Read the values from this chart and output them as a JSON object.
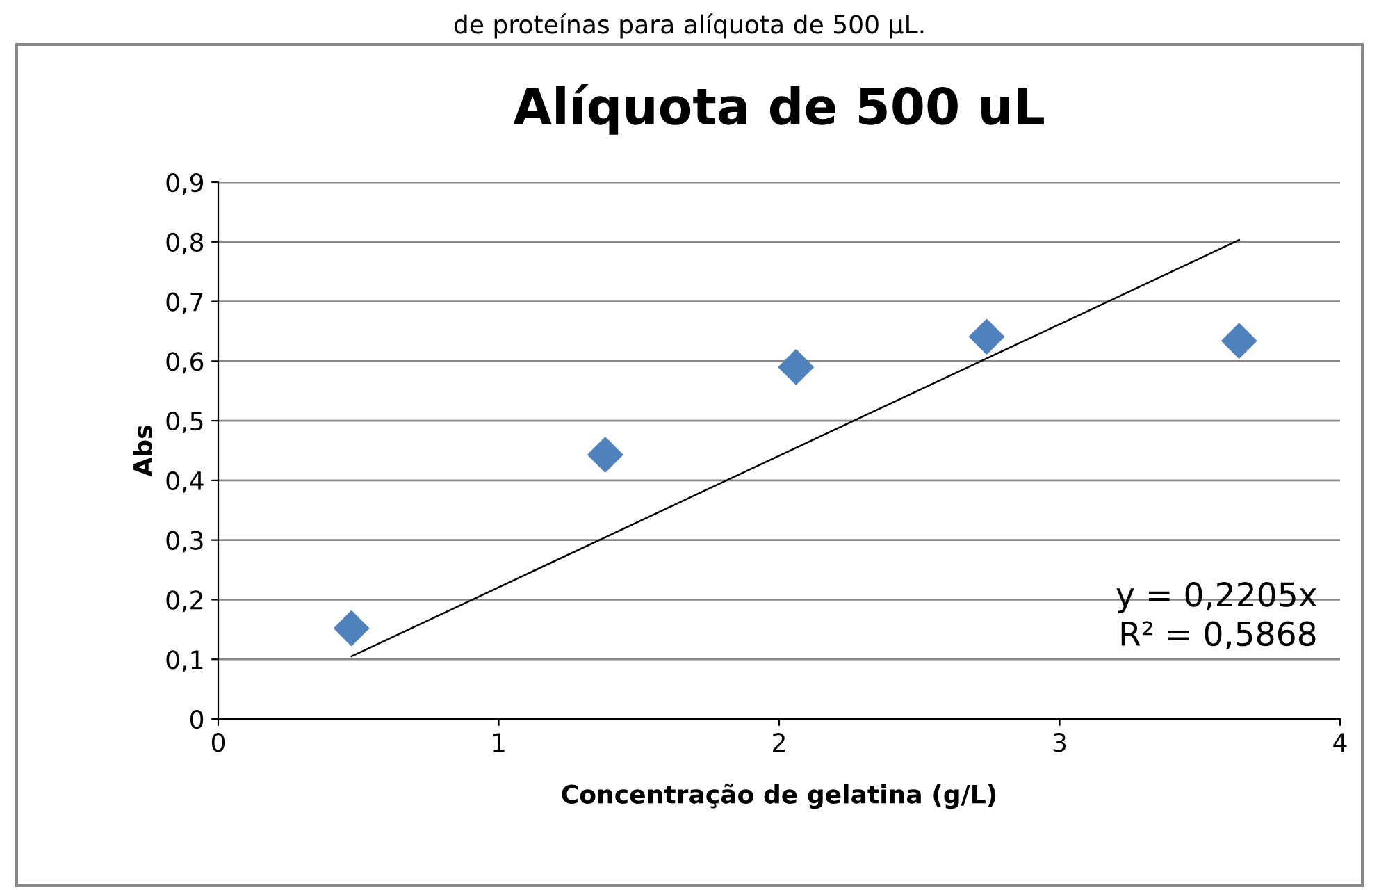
{
  "chart_data": {
    "type": "scatter",
    "title": "Alíquota de 500 uL",
    "xlabel": "Concentração de gelatina (g/L)",
    "ylabel": "Abs",
    "series": [
      {
        "color": "#4f81bd",
        "marker": "diamond",
        "x": [
          0.475,
          1.38,
          2.06,
          2.74,
          3.64
        ],
        "values": [
          0.152,
          0.443,
          0.59,
          0.641,
          0.634
        ]
      },
      {
        "type": "line",
        "color": "#000000",
        "marker": "none",
        "x": [
          0.475,
          3.64
        ],
        "values": [
          0.105,
          0.803
        ]
      }
    ],
    "annotations": [
      "de proteínas para alíquota de 500 µL.",
      "y = 0,2205x\nR² = 0,5868"
    ],
    "xlim": [
      0,
      4
    ],
    "ylim": [
      0,
      0.9
    ],
    "xticks": [
      0,
      1,
      2,
      3,
      4
    ],
    "yticks": [
      0,
      {
        "value": 0.1,
        "label": "0,1"
      },
      {
        "value": 0.2,
        "label": "0,2"
      },
      {
        "value": 0.3,
        "label": "0,3"
      },
      {
        "value": 0.4,
        "label": "0,4"
      },
      {
        "value": 0.5,
        "label": "0,5"
      },
      {
        "value": 0.6,
        "label": "0,6"
      },
      {
        "value": 0.7,
        "label": "0,7"
      },
      {
        "value": 0.8,
        "label": "0,8"
      },
      {
        "value": 0.9,
        "label": "0,9"
      }
    ],
    "grid": "y",
    "legend": false
  }
}
